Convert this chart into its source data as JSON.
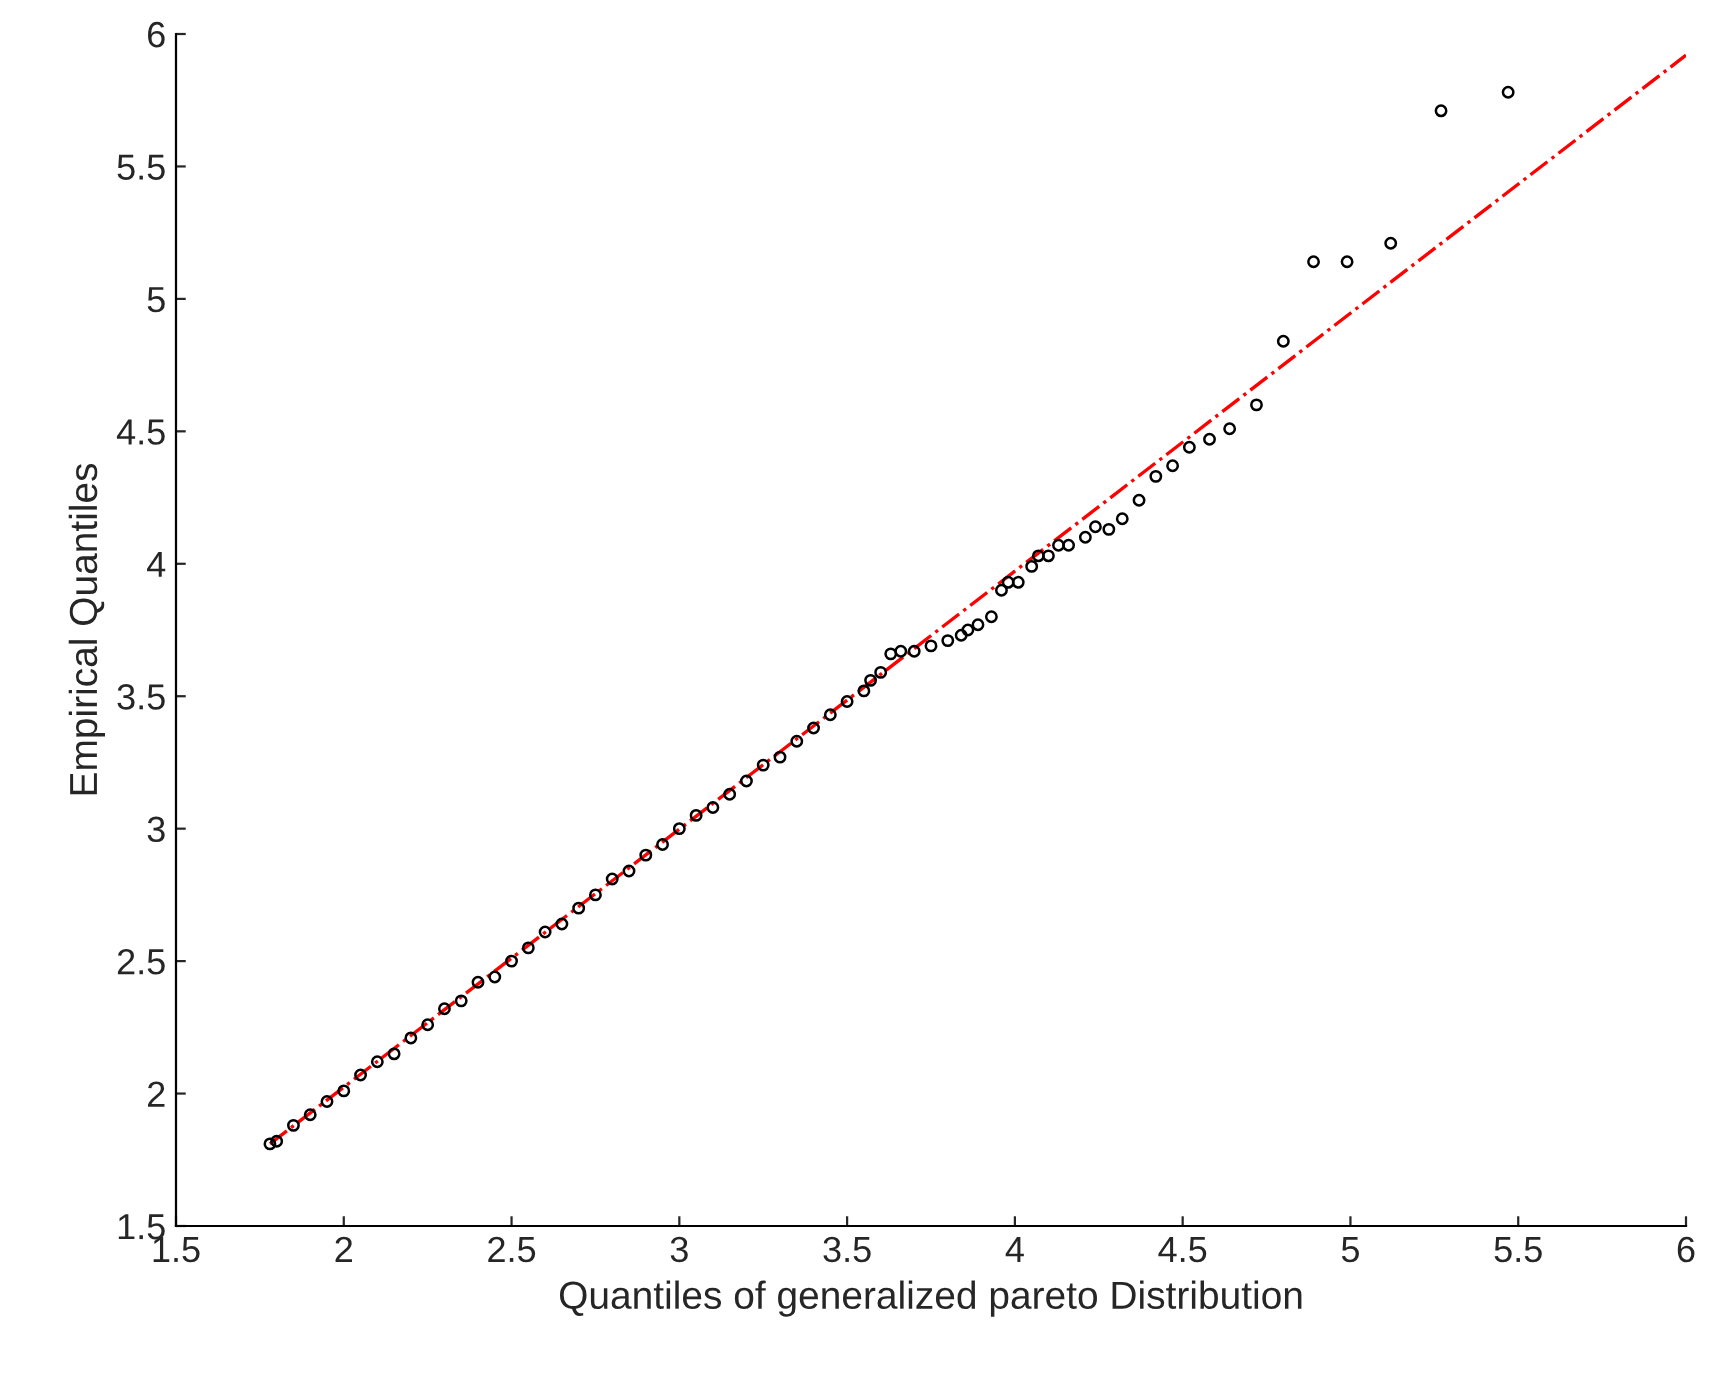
{
  "chart_data": {
    "type": "scatter",
    "xlabel": "Quantiles of generalized pareto Distribution",
    "ylabel": "Empirical Quantiles",
    "xlim": [
      1.5,
      6
    ],
    "ylim": [
      1.5,
      6
    ],
    "xticks": [
      1.5,
      2,
      2.5,
      3,
      3.5,
      4,
      4.5,
      5,
      5.5,
      6
    ],
    "yticks": [
      1.5,
      2,
      2.5,
      3,
      3.5,
      4,
      4.5,
      5,
      5.5,
      6
    ],
    "grid": false,
    "legend": false,
    "series": [
      {
        "color": "#000000",
        "marker": "circle",
        "x": [
          1.78,
          1.8,
          1.85,
          1.9,
          1.95,
          2.0,
          2.05,
          2.1,
          2.15,
          2.2,
          2.25,
          2.3,
          2.35,
          2.4,
          2.45,
          2.5,
          2.55,
          2.6,
          2.65,
          2.7,
          2.75,
          2.8,
          2.85,
          2.9,
          2.95,
          3.0,
          3.05,
          3.1,
          3.15,
          3.2,
          3.25,
          3.3,
          3.35,
          3.4,
          3.45,
          3.5,
          3.55,
          3.57,
          3.6,
          3.63,
          3.66,
          3.7,
          3.75,
          3.8,
          3.84,
          3.86,
          3.89,
          3.93,
          3.96,
          3.98,
          4.01,
          4.05,
          4.07,
          4.1,
          4.13,
          4.16,
          4.21,
          4.24,
          4.28,
          4.32,
          4.37,
          4.42,
          4.47,
          4.52,
          4.58,
          4.64,
          4.72,
          4.8,
          4.89,
          4.99,
          5.12,
          5.27,
          5.47
        ],
        "values": [
          1.81,
          1.82,
          1.88,
          1.92,
          1.97,
          2.01,
          2.07,
          2.12,
          2.15,
          2.21,
          2.26,
          2.32,
          2.35,
          2.42,
          2.44,
          2.5,
          2.55,
          2.61,
          2.64,
          2.7,
          2.75,
          2.81,
          2.84,
          2.9,
          2.94,
          3.0,
          3.05,
          3.08,
          3.13,
          3.18,
          3.24,
          3.27,
          3.33,
          3.38,
          3.43,
          3.48,
          3.52,
          3.56,
          3.59,
          3.66,
          3.67,
          3.67,
          3.69,
          3.71,
          3.73,
          3.75,
          3.77,
          3.8,
          3.9,
          3.93,
          3.93,
          3.99,
          4.03,
          4.03,
          4.07,
          4.07,
          4.1,
          4.14,
          4.13,
          4.17,
          4.24,
          4.33,
          4.37,
          4.44,
          4.47,
          4.51,
          4.6,
          4.84,
          5.14,
          5.14,
          5.21,
          5.71,
          5.78
        ]
      },
      {
        "type": "line",
        "color": "#ff0000",
        "line_style": "dashdot",
        "x": [
          1.78,
          6
        ],
        "values": [
          1.81,
          5.92
        ]
      }
    ]
  }
}
